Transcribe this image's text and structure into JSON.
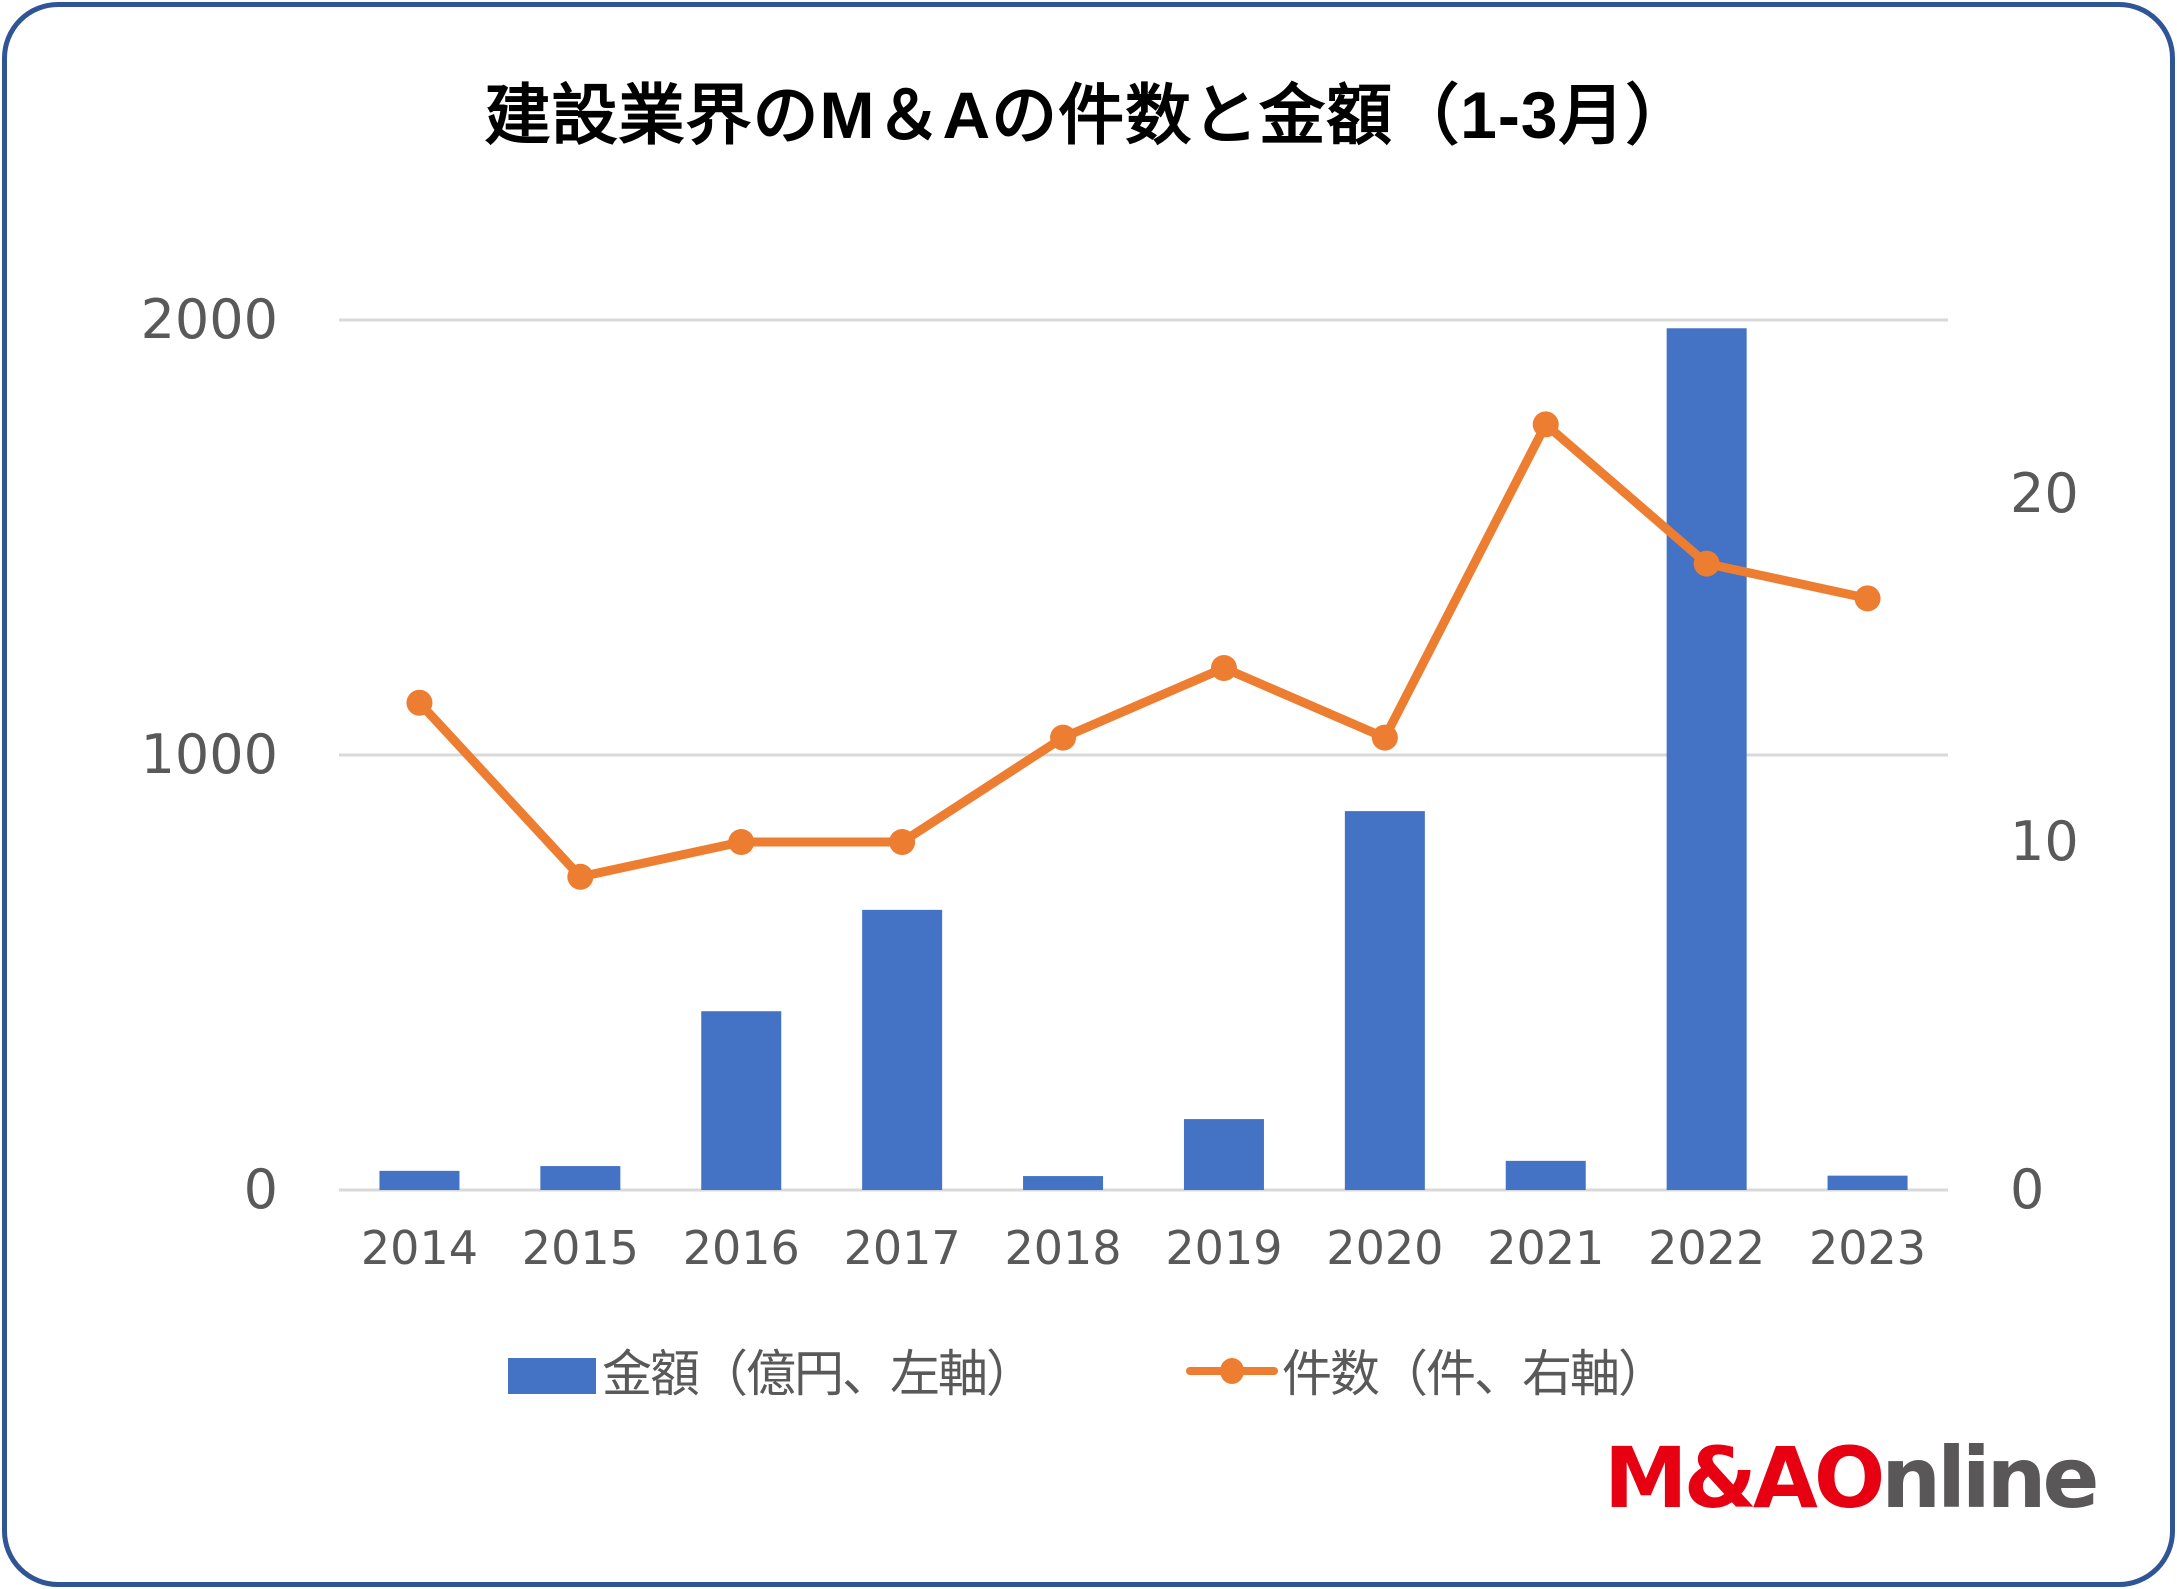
{
  "title": "建設業界のM＆Aの件数と金額（1-3月）",
  "chart_data": {
    "type": "bar+line",
    "title": "建設業界のM＆Aの件数と金額（1-3月）",
    "categories": [
      "2014",
      "2015",
      "2016",
      "2017",
      "2018",
      "2019",
      "2020",
      "2021",
      "2022",
      "2023"
    ],
    "series": [
      {
        "name": "金額（億円、左軸）",
        "type": "bar",
        "axis": "left",
        "color": "#4472C4",
        "values": [
          44,
          55,
          411,
          644,
          32,
          163,
          871,
          67,
          1981,
          33
        ]
      },
      {
        "name": "件数（件、右軸）",
        "type": "line",
        "axis": "right",
        "color": "#ED7D31",
        "values": [
          14,
          9,
          10,
          10,
          13,
          15,
          13,
          22,
          18,
          17
        ]
      }
    ],
    "left_axis": {
      "ticks": [
        "0",
        "1000",
        "2000"
      ],
      "ylim": [
        0,
        2000
      ]
    },
    "right_axis": {
      "ticks": [
        "0",
        "10",
        "20"
      ],
      "ylim": [
        0,
        25
      ]
    },
    "xlabel": "",
    "ylabel": "",
    "grid": true,
    "legend_position": "bottom"
  },
  "legend": {
    "bar_label": "金額（億円、左軸）",
    "line_label": "件数（件、右軸）"
  },
  "logo": {
    "red_part": "M&AO",
    "grey_part": "nline"
  },
  "colors": {
    "border": "#2F5597",
    "bar": "#4472C4",
    "line": "#ED7D31",
    "grid": "#D9D9D9",
    "tick_text": "#595959"
  }
}
